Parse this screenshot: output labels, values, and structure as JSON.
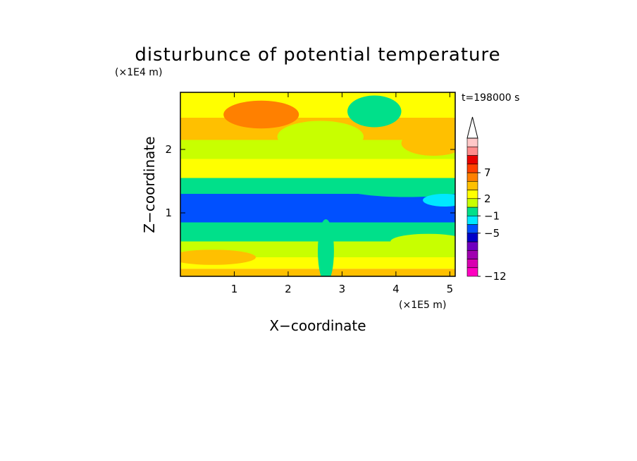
{
  "chart_data": {
    "type": "heatmap",
    "title": "disturbunce of potential temperature",
    "time_label": "t=198000 s",
    "xlabel": "X−coordinate",
    "ylabel": "Z−coordinate",
    "x_unit": "(×1E5 m)",
    "y_unit": "(×1E4 m)",
    "xlim": [
      0,
      5.1
    ],
    "ylim": [
      0,
      2.9
    ],
    "x_ticks": [
      "1",
      "2",
      "3",
      "4",
      "5"
    ],
    "y_ticks": [
      "1",
      "2"
    ],
    "colorbar": {
      "levels": [
        -12,
        -11,
        -9,
        -7,
        -5,
        -3,
        -1,
        1,
        2,
        3,
        5,
        7,
        9,
        11
      ],
      "colors": [
        "#ff00c0",
        "#d800b0",
        "#a000b0",
        "#7000c0",
        "#0000c8",
        "#0050ff",
        "#00e8ff",
        "#00e08a",
        "#c8ff00",
        "#ffff00",
        "#ffc000",
        "#ff8000",
        "#ff4000",
        "#e80000",
        "#ff8c8c",
        "#ffc8c8"
      ],
      "tick_labels": [
        "7",
        "2",
        "−1",
        "−5",
        "−12"
      ],
      "extend": "max"
    },
    "bands": [
      {
        "z_min": 0.0,
        "z_max": 0.12,
        "value": 4
      },
      {
        "z_min": 0.12,
        "z_max": 0.3,
        "value": 2.5
      },
      {
        "z_min": 0.3,
        "z_max": 0.55,
        "value": 1.5
      },
      {
        "z_min": 0.55,
        "z_max": 0.85,
        "value": 0
      },
      {
        "z_min": 0.85,
        "z_max": 1.3,
        "value": -5
      },
      {
        "z_min": 1.3,
        "z_max": 1.55,
        "value": -1
      },
      {
        "z_min": 1.55,
        "z_max": 1.85,
        "value": 2.5
      },
      {
        "z_min": 1.85,
        "z_max": 2.15,
        "value": 1.5
      },
      {
        "z_min": 2.15,
        "z_max": 2.5,
        "value": 3.5
      },
      {
        "z_min": 2.5,
        "z_max": 2.9,
        "value": 2
      }
    ],
    "anomalies": [
      {
        "x": 1.5,
        "z": 2.55,
        "rx": 0.7,
        "rz": 0.22,
        "value": 6
      },
      {
        "x": 2.6,
        "z": 2.2,
        "rx": 0.8,
        "rz": 0.25,
        "value": 1.5
      },
      {
        "x": 3.6,
        "z": 2.6,
        "rx": 0.5,
        "rz": 0.25,
        "value": 0
      },
      {
        "x": 4.7,
        "z": 2.1,
        "rx": 0.6,
        "rz": 0.2,
        "value": 3.5
      },
      {
        "x": 4.2,
        "z": 1.4,
        "rx": 1.2,
        "rz": 0.15,
        "value": -1
      },
      {
        "x": 0.6,
        "z": 0.3,
        "rx": 0.8,
        "rz": 0.12,
        "value": 4
      },
      {
        "x": 4.6,
        "z": 0.55,
        "rx": 0.7,
        "rz": 0.12,
        "value": 1.5
      },
      {
        "x": 2.7,
        "z": 0.4,
        "rx": 0.15,
        "rz": 0.5,
        "value": 0
      },
      {
        "x": 4.9,
        "z": 1.2,
        "rx": 0.4,
        "rz": 0.1,
        "value": -3
      }
    ]
  }
}
